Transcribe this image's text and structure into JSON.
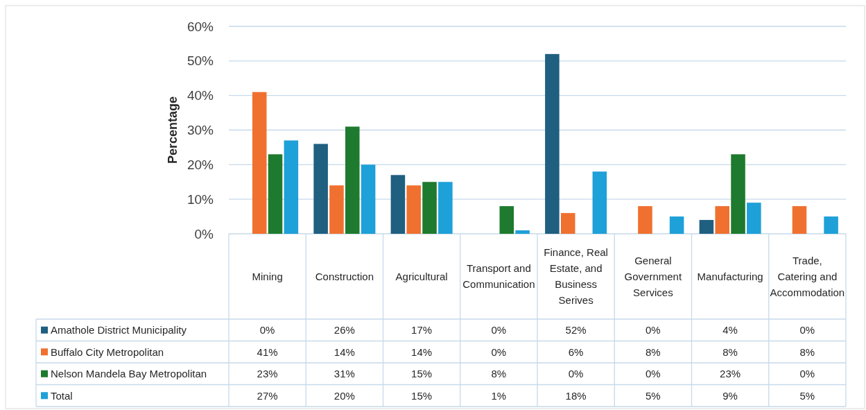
{
  "chart_data": {
    "type": "bar",
    "ylabel": "Percentage",
    "categories": [
      "Mining",
      "Construction",
      "Agricultural",
      "Transport and Communication",
      "Finance, Real Estate, and Business Serives",
      "General Government Services",
      "Manufacturing",
      "Trade, Catering and Accommodation"
    ],
    "series": [
      {
        "name": "Amathole District Municipality",
        "color": "#1f5f80",
        "values": [
          0,
          26,
          17,
          0,
          52,
          0,
          4,
          0
        ],
        "value_labels": [
          "0%",
          "26%",
          "17%",
          "0%",
          "52%",
          "0%",
          "4%",
          "0%"
        ]
      },
      {
        "name": "Buffalo City Metropolitan",
        "color": "#f07030",
        "values": [
          41,
          14,
          14,
          0,
          6,
          8,
          8,
          8
        ],
        "value_labels": [
          "41%",
          "14%",
          "14%",
          "0%",
          "6%",
          "8%",
          "8%",
          "8%"
        ]
      },
      {
        "name": "Nelson Mandela Bay Metropolitan",
        "color": "#1e7a2e",
        "values": [
          23,
          31,
          15,
          8,
          0,
          0,
          23,
          0
        ],
        "value_labels": [
          "23%",
          "31%",
          "15%",
          "8%",
          "0%",
          "0%",
          "23%",
          "0%"
        ]
      },
      {
        "name": "Total",
        "color": "#1ea0d8",
        "values": [
          27,
          20,
          15,
          1,
          18,
          5,
          9,
          5
        ],
        "value_labels": [
          "27%",
          "20%",
          "15%",
          "1%",
          "18%",
          "5%",
          "9%",
          "5%"
        ]
      }
    ],
    "ylim": [
      0,
      60
    ],
    "yticks": [
      {
        "value": 0,
        "label": "0%"
      },
      {
        "value": 10,
        "label": "10%"
      },
      {
        "value": 20,
        "label": "20%"
      },
      {
        "value": 30,
        "label": "30%"
      },
      {
        "value": 40,
        "label": "40%"
      },
      {
        "value": 50,
        "label": "50%"
      },
      {
        "value": 60,
        "label": "60%"
      }
    ],
    "grid": "y",
    "legend": "bottom"
  }
}
